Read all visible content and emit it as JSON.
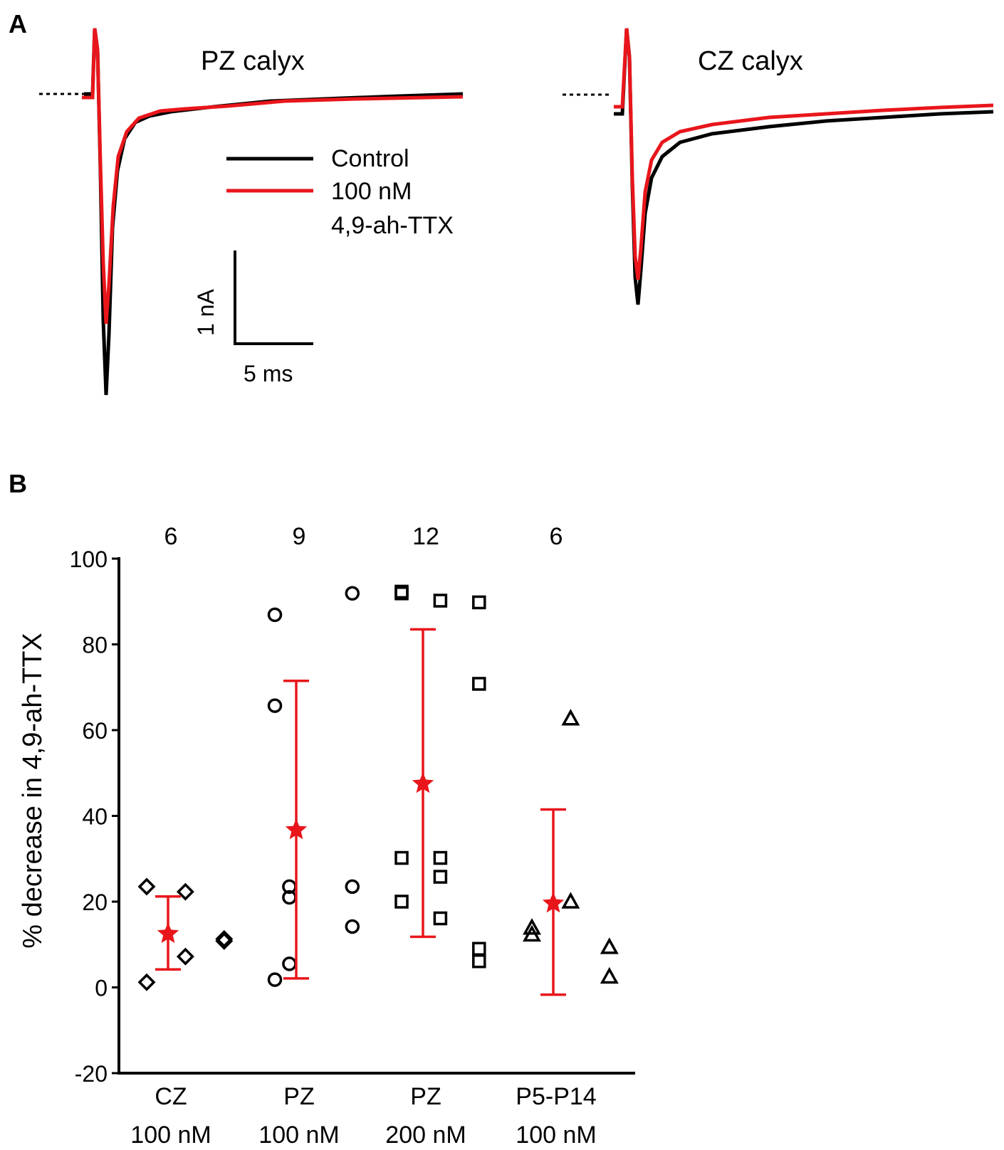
{
  "panels": {
    "a": "A",
    "b": "B"
  },
  "panel_a": {
    "left_title": "PZ calyx",
    "right_title": "CZ calyx",
    "legend": [
      {
        "label_lines": [
          "Control"
        ],
        "color": "#000000"
      },
      {
        "label_lines": [
          "100 nM",
          "4,9-ah-TTX"
        ],
        "color": "#e8161b"
      }
    ],
    "scale_bar": {
      "current_label": "1 nA",
      "time_label": "5 ms"
    }
  },
  "chart_data": {
    "type": "scatter",
    "title": "",
    "xlabel": "",
    "ylabel": "% decrease in 4,9-ah-TTX",
    "ylim": [
      -20,
      100
    ],
    "yticks": [
      -20,
      0,
      20,
      40,
      60,
      80,
      100
    ],
    "grid": false,
    "mean_color": "#e8161b",
    "point_color": "#000000",
    "groups": [
      {
        "name": "CZ 100 nM",
        "label_lines": [
          "CZ",
          "100 nM"
        ],
        "n": "6",
        "marker": "diamond",
        "points": [
          [
            -1.0,
            23.5
          ],
          [
            0.6,
            22.3
          ],
          [
            0.6,
            7.2
          ],
          [
            -1.0,
            1.2
          ],
          [
            2.2,
            11.3
          ],
          [
            2.2,
            10.8
          ]
        ],
        "mean": 12.5,
        "err_low": 4.2,
        "err_high": 21.2
      },
      {
        "name": "PZ 100 nM",
        "label_lines": [
          "PZ",
          "100 nM"
        ],
        "n": "9",
        "marker": "circle",
        "points": [
          [
            -1.0,
            86.9
          ],
          [
            -1.0,
            65.7
          ],
          [
            -1.0,
            1.8
          ],
          [
            -0.4,
            23.5
          ],
          [
            -0.4,
            21.0
          ],
          [
            -0.4,
            5.5
          ],
          [
            2.2,
            91.9
          ],
          [
            2.2,
            23.5
          ],
          [
            2.2,
            14.2
          ]
        ],
        "mean": 36.7,
        "err_low": 2.1,
        "err_high": 71.5
      },
      {
        "name": "PZ 200 nM",
        "label_lines": [
          "PZ",
          "200 nM"
        ],
        "n": "12",
        "marker": "square",
        "points": [
          [
            -1.0,
            92.3
          ],
          [
            -1.0,
            91.9
          ],
          [
            -1.0,
            30.2
          ],
          [
            -1.0,
            20.0
          ],
          [
            0.6,
            90.2
          ],
          [
            0.6,
            30.2
          ],
          [
            0.6,
            25.8
          ],
          [
            0.6,
            16.1
          ],
          [
            2.2,
            89.8
          ],
          [
            2.2,
            70.8
          ],
          [
            2.2,
            9.0
          ],
          [
            2.2,
            6.1
          ]
        ],
        "mean": 47.5,
        "err_low": 11.8,
        "err_high": 83.5
      },
      {
        "name": "P5-P14 100 nM",
        "label_lines": [
          "P5-P14",
          "100 nM"
        ],
        "n": "6",
        "marker": "triangle",
        "points": [
          [
            -1.0,
            13.9
          ],
          [
            -1.0,
            12.3
          ],
          [
            0.6,
            62.7
          ],
          [
            0.6,
            20.0
          ],
          [
            2.2,
            9.4
          ],
          [
            2.2,
            2.5
          ]
        ],
        "mean": 19.6,
        "err_low": -1.7,
        "err_high": 41.5
      }
    ]
  }
}
